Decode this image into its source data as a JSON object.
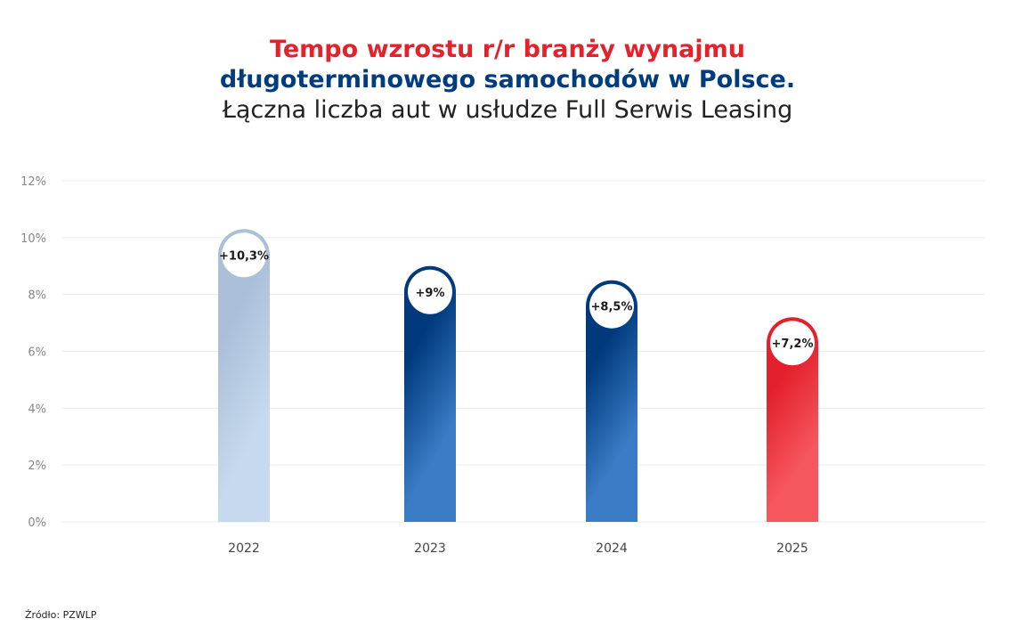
{
  "title_line1": "Tempo wzrostu r/r branży wynajmu",
  "title_line2": "długoterminowego samochodów w Polsce.",
  "title_line3": "Łączna liczba aut w usłudze Full Serwis Leasing",
  "source": "Źródło: PZWLP",
  "colors": {
    "title_red": "#e3222b",
    "title_navy": "#003c7e"
  },
  "chart_data": {
    "type": "bar",
    "categories": [
      "2022",
      "2023",
      "2024",
      "2025"
    ],
    "values": [
      10.3,
      9,
      8.5,
      7.2
    ],
    "data_labels": [
      "+10,3%",
      "+9%",
      "+8,5%",
      "+7,2%"
    ],
    "bar_colors": [
      [
        "#aabfd8",
        "#c6d9ee"
      ],
      [
        "#003a7d",
        "#3a7cc6"
      ],
      [
        "#003a7d",
        "#3a7cc6"
      ],
      [
        "#e3202b",
        "#f6565e"
      ]
    ],
    "yticks": [
      0,
      2,
      4,
      6,
      8,
      10,
      12
    ],
    "ytick_labels": [
      "0%",
      "2%",
      "4%",
      "6%",
      "8%",
      "10%",
      "12%"
    ],
    "ylim": [
      0,
      12
    ],
    "grid": true,
    "xlabel": "",
    "ylabel": ""
  }
}
